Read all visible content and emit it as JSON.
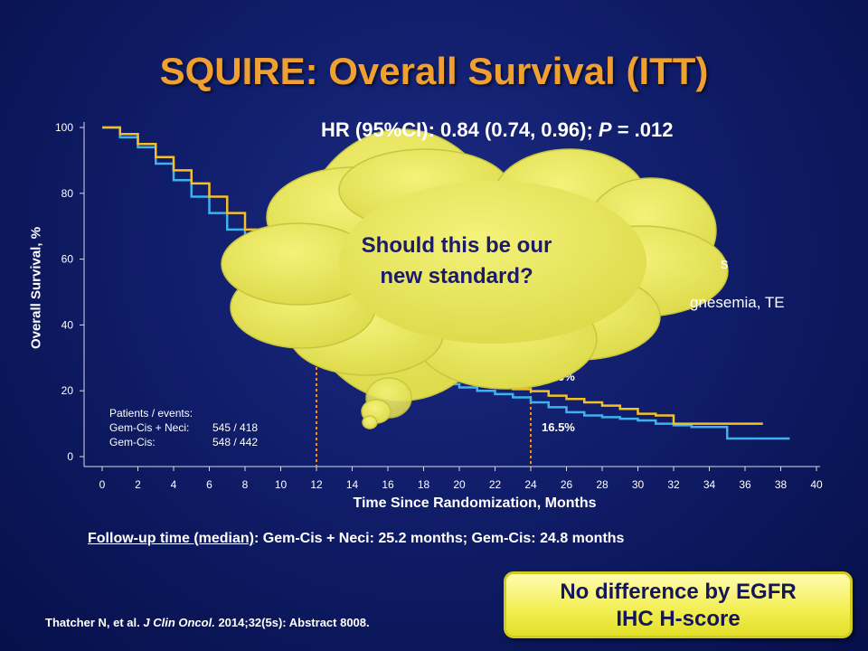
{
  "slide": {
    "title": "SQUIRE: Overall Survival (ITT)",
    "hr_prefix": "HR (95%CI): 0.84 (0.74, 0.96); ",
    "hr_p_label": "P",
    "hr_p_value": " = .012",
    "followup_label": "Follow-up time (median)",
    "followup_text": ": Gem-Cis + Neci: 25.2 months; Gem-Cis: 24.8 months",
    "citation_author": "Thatcher N, et al. ",
    "citation_journal": "J Clin Oncol.",
    "citation_rest": " 2014;32(5s): Abstract 8008.",
    "callout_line1": "No difference by EGFR",
    "callout_line2": "IHC H-score",
    "cloud_line1": "Should this be our",
    "cloud_line2": "new standard?",
    "peek_fragment_1": "s",
    "peek_fragment_2": "gnesemia,  TE"
  },
  "patients": {
    "header": "Patients / events:",
    "rows": [
      {
        "label": "Gem-Cis + Neci:",
        "value": "545 / 418"
      },
      {
        "label": "Gem-Cis:",
        "value": "548 / 442"
      }
    ]
  },
  "colors": {
    "gem_cis_neci": "#f5c026",
    "gem_cis": "#3fb1ee",
    "title": "#f0a030",
    "reference_line": "#e8912a",
    "cloud": "#ece95a"
  },
  "chart_data": {
    "type": "line",
    "xlabel": "Time Since Randomization, Months",
    "ylabel": "Overall Survival, %",
    "xlim": [
      0,
      40
    ],
    "ylim": [
      0,
      100
    ],
    "x_ticks": [
      "0",
      "2",
      "4",
      "6",
      "8",
      "10",
      "12",
      "14",
      "16",
      "18",
      "20",
      "22",
      "24",
      "26",
      "28",
      "30",
      "32",
      "34",
      "36",
      "38",
      "40"
    ],
    "y_ticks": [
      "0",
      "20",
      "40",
      "60",
      "80",
      "100"
    ],
    "reference_lines_x": [
      12,
      24
    ],
    "annotations": [
      {
        "x": 24,
        "y": 19.9,
        "text": "19.9%"
      },
      {
        "x": 24,
        "y": 16.5,
        "text": "16.5%"
      }
    ],
    "series": [
      {
        "key": "gem_cis_neci",
        "x": [
          0,
          1,
          2,
          3,
          4,
          5,
          6,
          7,
          8,
          9,
          10,
          11,
          15,
          16,
          17,
          18,
          19,
          20,
          21,
          22,
          23,
          24,
          25,
          26,
          27,
          28,
          29,
          30,
          31,
          32,
          33,
          34,
          35,
          36,
          37
        ],
        "y": [
          100,
          98,
          95,
          91,
          87,
          83,
          79,
          74,
          69,
          65,
          61,
          57,
          33,
          30,
          28,
          26.5,
          25,
          24,
          22.5,
          21.5,
          20.5,
          19.9,
          18.5,
          17.5,
          16.5,
          15.5,
          14.5,
          13,
          12.5,
          10,
          10,
          10,
          10,
          10,
          10
        ]
      },
      {
        "key": "gem_cis",
        "x": [
          0,
          1,
          2,
          3,
          4,
          5,
          6,
          7,
          8,
          9,
          10,
          11,
          15,
          16,
          17,
          18,
          19,
          20,
          21,
          22,
          23,
          24,
          25,
          26,
          27,
          28,
          29,
          30,
          31,
          32,
          33,
          34,
          35,
          36,
          37,
          38.5
        ],
        "y": [
          100,
          97,
          94,
          89,
          84,
          79,
          74,
          69,
          64,
          60,
          56,
          52,
          29.5,
          27,
          25,
          23.5,
          22,
          21,
          20,
          19,
          18,
          16.5,
          15,
          13.5,
          12.5,
          12,
          11.5,
          11,
          10,
          9.5,
          9,
          9,
          5.5,
          5.5,
          5.5,
          5.5
        ]
      }
    ]
  }
}
